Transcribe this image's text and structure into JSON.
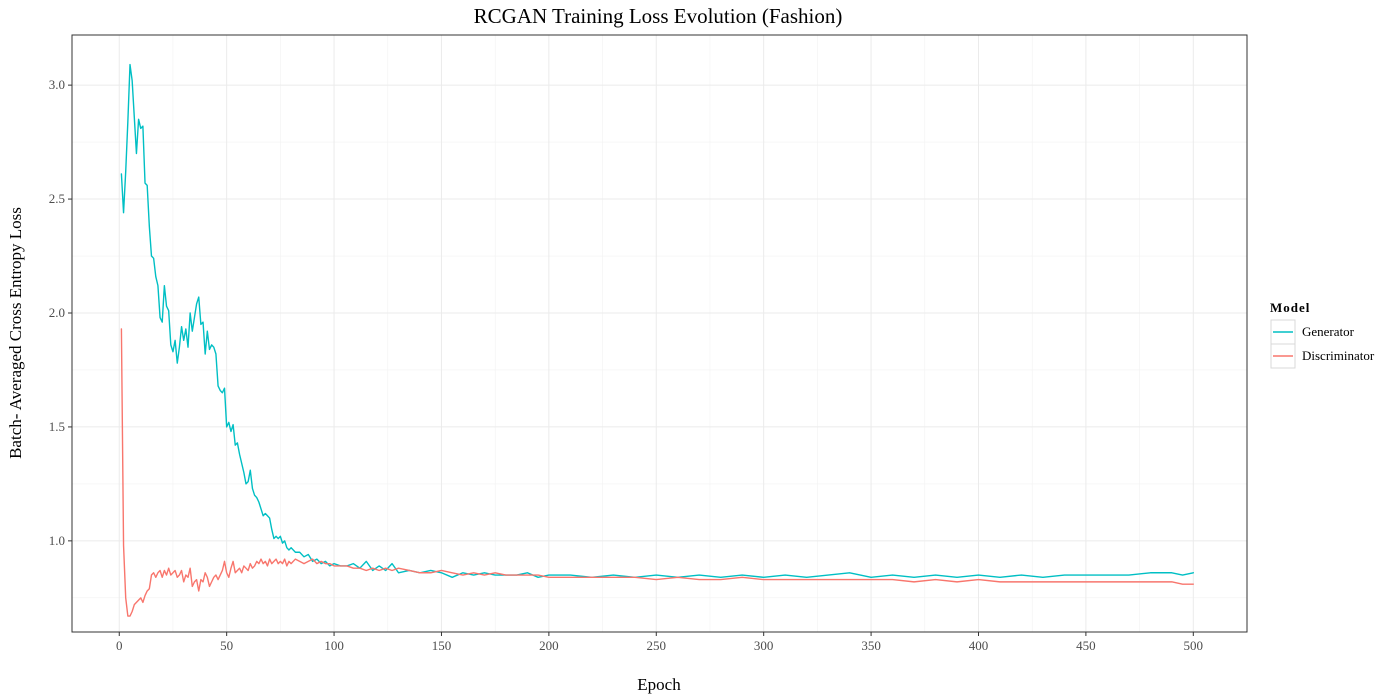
{
  "chart_data": {
    "type": "line",
    "title": "RCGAN Training Loss Evolution (Fashion)",
    "xlabel": "Epoch",
    "ylabel": "Batch- Averaged Cross Entropy Loss",
    "xlim": [
      -22,
      525
    ],
    "ylim": [
      0.6,
      3.22
    ],
    "xticks": [
      0,
      50,
      100,
      150,
      200,
      250,
      300,
      350,
      400,
      450,
      500
    ],
    "yticks": [
      1.0,
      1.5,
      2.0,
      2.5,
      3.0
    ],
    "ytick_labels": [
      "1.0",
      "1.5",
      "2.0",
      "2.5",
      "3.0"
    ],
    "grid": true,
    "legend": {
      "title": "Model",
      "placement": "right"
    },
    "series": [
      {
        "name": "Generator",
        "color": "#00BFC4",
        "points": [
          [
            1,
            2.61
          ],
          [
            2,
            2.44
          ],
          [
            3,
            2.62
          ],
          [
            4,
            2.84
          ],
          [
            5,
            3.09
          ],
          [
            6,
            3.02
          ],
          [
            7,
            2.86
          ],
          [
            8,
            2.7
          ],
          [
            9,
            2.85
          ],
          [
            10,
            2.81
          ],
          [
            11,
            2.82
          ],
          [
            12,
            2.57
          ],
          [
            13,
            2.56
          ],
          [
            14,
            2.38
          ],
          [
            15,
            2.25
          ],
          [
            16,
            2.24
          ],
          [
            17,
            2.16
          ],
          [
            18,
            2.12
          ],
          [
            19,
            1.98
          ],
          [
            20,
            1.96
          ],
          [
            21,
            2.12
          ],
          [
            22,
            2.03
          ],
          [
            23,
            2.01
          ],
          [
            24,
            1.86
          ],
          [
            25,
            1.83
          ],
          [
            26,
            1.88
          ],
          [
            27,
            1.78
          ],
          [
            28,
            1.85
          ],
          [
            29,
            1.94
          ],
          [
            30,
            1.88
          ],
          [
            31,
            1.93
          ],
          [
            32,
            1.85
          ],
          [
            33,
            2.0
          ],
          [
            34,
            1.92
          ],
          [
            35,
            1.98
          ],
          [
            36,
            2.04
          ],
          [
            37,
            2.07
          ],
          [
            38,
            1.95
          ],
          [
            39,
            1.96
          ],
          [
            40,
            1.82
          ],
          [
            41,
            1.92
          ],
          [
            42,
            1.84
          ],
          [
            43,
            1.86
          ],
          [
            44,
            1.85
          ],
          [
            45,
            1.82
          ],
          [
            46,
            1.68
          ],
          [
            47,
            1.66
          ],
          [
            48,
            1.65
          ],
          [
            49,
            1.67
          ],
          [
            50,
            1.5
          ],
          [
            51,
            1.52
          ],
          [
            52,
            1.48
          ],
          [
            53,
            1.51
          ],
          [
            54,
            1.42
          ],
          [
            55,
            1.43
          ],
          [
            56,
            1.38
          ],
          [
            57,
            1.34
          ],
          [
            58,
            1.3
          ],
          [
            59,
            1.25
          ],
          [
            60,
            1.26
          ],
          [
            61,
            1.31
          ],
          [
            62,
            1.23
          ],
          [
            63,
            1.2
          ],
          [
            64,
            1.19
          ],
          [
            65,
            1.17
          ],
          [
            66,
            1.14
          ],
          [
            67,
            1.11
          ],
          [
            68,
            1.12
          ],
          [
            69,
            1.11
          ],
          [
            70,
            1.1
          ],
          [
            71,
            1.05
          ],
          [
            72,
            1.01
          ],
          [
            73,
            1.02
          ],
          [
            74,
            1.01
          ],
          [
            75,
            1.02
          ],
          [
            76,
            0.99
          ],
          [
            77,
            1.0
          ],
          [
            78,
            0.97
          ],
          [
            79,
            0.96
          ],
          [
            80,
            0.97
          ],
          [
            82,
            0.95
          ],
          [
            84,
            0.95
          ],
          [
            86,
            0.93
          ],
          [
            88,
            0.94
          ],
          [
            90,
            0.91
          ],
          [
            92,
            0.92
          ],
          [
            94,
            0.9
          ],
          [
            96,
            0.91
          ],
          [
            98,
            0.89
          ],
          [
            100,
            0.9
          ],
          [
            103,
            0.89
          ],
          [
            106,
            0.89
          ],
          [
            109,
            0.9
          ],
          [
            112,
            0.88
          ],
          [
            115,
            0.91
          ],
          [
            118,
            0.87
          ],
          [
            121,
            0.89
          ],
          [
            124,
            0.87
          ],
          [
            127,
            0.9
          ],
          [
            130,
            0.86
          ],
          [
            135,
            0.87
          ],
          [
            140,
            0.86
          ],
          [
            145,
            0.87
          ],
          [
            150,
            0.86
          ],
          [
            155,
            0.84
          ],
          [
            160,
            0.86
          ],
          [
            165,
            0.85
          ],
          [
            170,
            0.86
          ],
          [
            175,
            0.85
          ],
          [
            180,
            0.85
          ],
          [
            185,
            0.85
          ],
          [
            190,
            0.86
          ],
          [
            195,
            0.84
          ],
          [
            200,
            0.85
          ],
          [
            210,
            0.85
          ],
          [
            220,
            0.84
          ],
          [
            230,
            0.85
          ],
          [
            240,
            0.84
          ],
          [
            250,
            0.85
          ],
          [
            260,
            0.84
          ],
          [
            270,
            0.85
          ],
          [
            280,
            0.84
          ],
          [
            290,
            0.85
          ],
          [
            300,
            0.84
          ],
          [
            310,
            0.85
          ],
          [
            320,
            0.84
          ],
          [
            330,
            0.85
          ],
          [
            340,
            0.86
          ],
          [
            350,
            0.84
          ],
          [
            360,
            0.85
          ],
          [
            370,
            0.84
          ],
          [
            380,
            0.85
          ],
          [
            390,
            0.84
          ],
          [
            400,
            0.85
          ],
          [
            410,
            0.84
          ],
          [
            420,
            0.85
          ],
          [
            430,
            0.84
          ],
          [
            440,
            0.85
          ],
          [
            450,
            0.85
          ],
          [
            460,
            0.85
          ],
          [
            470,
            0.85
          ],
          [
            480,
            0.86
          ],
          [
            490,
            0.86
          ],
          [
            495,
            0.85
          ],
          [
            500,
            0.86
          ]
        ]
      },
      {
        "name": "Discriminator",
        "color": "#F8766D",
        "points": [
          [
            1,
            1.93
          ],
          [
            2,
            0.98
          ],
          [
            3,
            0.75
          ],
          [
            4,
            0.67
          ],
          [
            5,
            0.67
          ],
          [
            6,
            0.69
          ],
          [
            7,
            0.72
          ],
          [
            8,
            0.73
          ],
          [
            9,
            0.74
          ],
          [
            10,
            0.75
          ],
          [
            11,
            0.73
          ],
          [
            12,
            0.76
          ],
          [
            13,
            0.78
          ],
          [
            14,
            0.79
          ],
          [
            15,
            0.85
          ],
          [
            16,
            0.86
          ],
          [
            17,
            0.84
          ],
          [
            18,
            0.86
          ],
          [
            19,
            0.87
          ],
          [
            20,
            0.84
          ],
          [
            21,
            0.87
          ],
          [
            22,
            0.85
          ],
          [
            23,
            0.88
          ],
          [
            24,
            0.85
          ],
          [
            25,
            0.86
          ],
          [
            26,
            0.87
          ],
          [
            27,
            0.84
          ],
          [
            28,
            0.85
          ],
          [
            29,
            0.87
          ],
          [
            30,
            0.82
          ],
          [
            31,
            0.85
          ],
          [
            32,
            0.84
          ],
          [
            33,
            0.88
          ],
          [
            34,
            0.8
          ],
          [
            35,
            0.82
          ],
          [
            36,
            0.83
          ],
          [
            37,
            0.78
          ],
          [
            38,
            0.83
          ],
          [
            39,
            0.82
          ],
          [
            40,
            0.86
          ],
          [
            41,
            0.84
          ],
          [
            42,
            0.8
          ],
          [
            43,
            0.82
          ],
          [
            44,
            0.84
          ],
          [
            45,
            0.85
          ],
          [
            46,
            0.83
          ],
          [
            47,
            0.85
          ],
          [
            48,
            0.87
          ],
          [
            49,
            0.91
          ],
          [
            50,
            0.86
          ],
          [
            51,
            0.84
          ],
          [
            52,
            0.88
          ],
          [
            53,
            0.91
          ],
          [
            54,
            0.86
          ],
          [
            55,
            0.87
          ],
          [
            56,
            0.88
          ],
          [
            57,
            0.86
          ],
          [
            58,
            0.89
          ],
          [
            59,
            0.88
          ],
          [
            60,
            0.87
          ],
          [
            61,
            0.9
          ],
          [
            62,
            0.88
          ],
          [
            63,
            0.89
          ],
          [
            64,
            0.91
          ],
          [
            65,
            0.9
          ],
          [
            66,
            0.92
          ],
          [
            67,
            0.9
          ],
          [
            68,
            0.91
          ],
          [
            69,
            0.89
          ],
          [
            70,
            0.92
          ],
          [
            71,
            0.9
          ],
          [
            72,
            0.91
          ],
          [
            73,
            0.92
          ],
          [
            74,
            0.9
          ],
          [
            75,
            0.91
          ],
          [
            76,
            0.9
          ],
          [
            77,
            0.92
          ],
          [
            78,
            0.89
          ],
          [
            79,
            0.91
          ],
          [
            80,
            0.9
          ],
          [
            82,
            0.92
          ],
          [
            84,
            0.91
          ],
          [
            86,
            0.9
          ],
          [
            88,
            0.91
          ],
          [
            90,
            0.92
          ],
          [
            92,
            0.9
          ],
          [
            94,
            0.91
          ],
          [
            96,
            0.9
          ],
          [
            98,
            0.9
          ],
          [
            100,
            0.89
          ],
          [
            103,
            0.89
          ],
          [
            106,
            0.89
          ],
          [
            109,
            0.88
          ],
          [
            112,
            0.88
          ],
          [
            115,
            0.87
          ],
          [
            118,
            0.88
          ],
          [
            121,
            0.87
          ],
          [
            124,
            0.88
          ],
          [
            127,
            0.87
          ],
          [
            130,
            0.88
          ],
          [
            135,
            0.87
          ],
          [
            140,
            0.86
          ],
          [
            145,
            0.86
          ],
          [
            150,
            0.87
          ],
          [
            155,
            0.86
          ],
          [
            160,
            0.85
          ],
          [
            165,
            0.86
          ],
          [
            170,
            0.85
          ],
          [
            175,
            0.86
          ],
          [
            180,
            0.85
          ],
          [
            185,
            0.85
          ],
          [
            190,
            0.85
          ],
          [
            195,
            0.85
          ],
          [
            200,
            0.84
          ],
          [
            210,
            0.84
          ],
          [
            220,
            0.84
          ],
          [
            230,
            0.84
          ],
          [
            240,
            0.84
          ],
          [
            250,
            0.83
          ],
          [
            260,
            0.84
          ],
          [
            270,
            0.83
          ],
          [
            280,
            0.83
          ],
          [
            290,
            0.84
          ],
          [
            300,
            0.83
          ],
          [
            310,
            0.83
          ],
          [
            320,
            0.83
          ],
          [
            330,
            0.83
          ],
          [
            340,
            0.83
          ],
          [
            350,
            0.83
          ],
          [
            360,
            0.83
          ],
          [
            370,
            0.82
          ],
          [
            380,
            0.83
          ],
          [
            390,
            0.82
          ],
          [
            400,
            0.83
          ],
          [
            410,
            0.82
          ],
          [
            420,
            0.82
          ],
          [
            430,
            0.82
          ],
          [
            440,
            0.82
          ],
          [
            450,
            0.82
          ],
          [
            460,
            0.82
          ],
          [
            470,
            0.82
          ],
          [
            480,
            0.82
          ],
          [
            490,
            0.82
          ],
          [
            495,
            0.81
          ],
          [
            500,
            0.81
          ]
        ]
      }
    ]
  }
}
